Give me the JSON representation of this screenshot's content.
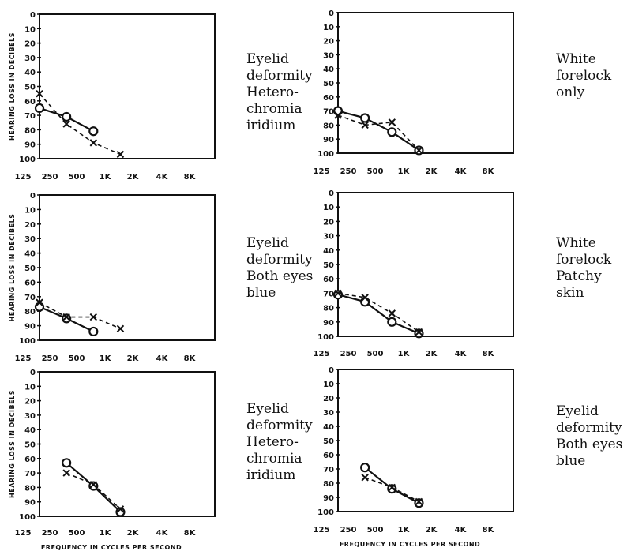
{
  "chart_data": [
    {
      "type": "line",
      "caption": [
        "Eyelid",
        "deformity",
        "Hetero-",
        "chromia",
        "iridium"
      ],
      "ylabel": "HEARING LOSS IN DECIBELS",
      "xlabel": "",
      "x_ticks": [
        "125",
        "250",
        "500",
        "1K",
        "2K",
        "4K",
        "8K"
      ],
      "y_ticks": [
        "0",
        "10",
        "20",
        "30",
        "40",
        "50",
        "60",
        "70",
        "80",
        "90",
        "100"
      ],
      "ylim": [
        0,
        100
      ],
      "series": [
        {
          "marker": "circle",
          "line": "solid",
          "x": [
            "125",
            "250",
            "500"
          ],
          "values": [
            65,
            71,
            81
          ]
        },
        {
          "marker": "cross",
          "line": "dashed",
          "x": [
            "125",
            "250",
            "500",
            "1K"
          ],
          "values": [
            55,
            76,
            89,
            97
          ]
        }
      ]
    },
    {
      "type": "line",
      "caption": [
        "White",
        "forelock",
        "only"
      ],
      "ylabel": "",
      "xlabel": "",
      "x_ticks": [
        "125",
        "250",
        "500",
        "1K",
        "2K",
        "4K",
        "8K"
      ],
      "y_ticks": [
        "0",
        "10",
        "20",
        "30",
        "40",
        "50",
        "60",
        "70",
        "80",
        "90",
        "100"
      ],
      "ylim": [
        0,
        100
      ],
      "series": [
        {
          "marker": "circle",
          "line": "solid",
          "x": [
            "125",
            "250",
            "500",
            "1K"
          ],
          "values": [
            70,
            75,
            85,
            98
          ]
        },
        {
          "marker": "cross",
          "line": "dashed",
          "x": [
            "125",
            "250",
            "500",
            "1K"
          ],
          "values": [
            73,
            80,
            78,
            98
          ]
        }
      ]
    },
    {
      "type": "line",
      "caption": [
        "Eyelid",
        "deformity",
        "Both eyes",
        "blue"
      ],
      "ylabel": "HEARING LOSS IN DECIBELS",
      "xlabel": "",
      "x_ticks": [
        "125",
        "250",
        "500",
        "1K",
        "2K",
        "4K",
        "8K"
      ],
      "y_ticks": [
        "0",
        "10",
        "20",
        "30",
        "40",
        "50",
        "60",
        "70",
        "80",
        "90",
        "100"
      ],
      "ylim": [
        0,
        100
      ],
      "series": [
        {
          "marker": "circle",
          "line": "solid",
          "x": [
            "125",
            "250",
            "500"
          ],
          "values": [
            77,
            85,
            94
          ]
        },
        {
          "marker": "cross",
          "line": "dashed",
          "x": [
            "125",
            "250",
            "500",
            "1K"
          ],
          "values": [
            74,
            84,
            84,
            92
          ]
        }
      ]
    },
    {
      "type": "line",
      "caption": [
        "White",
        "forelock",
        "Patchy",
        "skin"
      ],
      "ylabel": "",
      "xlabel": "",
      "x_ticks": [
        "125",
        "250",
        "500",
        "1K",
        "2K",
        "4K",
        "8K"
      ],
      "y_ticks": [
        "0",
        "10",
        "20",
        "30",
        "40",
        "50",
        "60",
        "70",
        "80",
        "90",
        "100"
      ],
      "ylim": [
        0,
        100
      ],
      "series": [
        {
          "marker": "circle",
          "line": "solid",
          "x": [
            "125",
            "250",
            "500",
            "1K"
          ],
          "values": [
            71,
            76,
            90,
            98
          ]
        },
        {
          "marker": "cross",
          "line": "dashed",
          "x": [
            "125",
            "250",
            "500",
            "1K"
          ],
          "values": [
            70,
            73,
            84,
            97
          ]
        }
      ]
    },
    {
      "type": "line",
      "caption": [
        "Eyelid",
        "deformity",
        "Hetero-",
        "chromia",
        "iridium"
      ],
      "ylabel": "HEARING LOSS IN DECIBELS",
      "xlabel": "FREQUENCY IN CYCLES PER SECOND",
      "x_ticks": [
        "125",
        "250",
        "500",
        "1K",
        "2K",
        "4K",
        "8K"
      ],
      "y_ticks": [
        "0",
        "10",
        "20",
        "30",
        "40",
        "50",
        "60",
        "70",
        "80",
        "90",
        "100"
      ],
      "ylim": [
        0,
        100
      ],
      "series": [
        {
          "marker": "circle",
          "line": "solid",
          "x": [
            "250",
            "500",
            "1K"
          ],
          "values": [
            63,
            79,
            97
          ]
        },
        {
          "marker": "cross",
          "line": "dashed",
          "x": [
            "250",
            "500",
            "1K"
          ],
          "values": [
            70,
            78,
            95
          ]
        }
      ]
    },
    {
      "type": "line",
      "caption": [
        "Eyelid",
        "deformity",
        "Both eyes",
        "blue"
      ],
      "ylabel": "",
      "xlabel": "FREQUENCY IN CYCLES PER SECOND",
      "x_ticks": [
        "125",
        "250",
        "500",
        "1K",
        "2K",
        "4K",
        "8K"
      ],
      "y_ticks": [
        "0",
        "10",
        "20",
        "30",
        "40",
        "50",
        "60",
        "70",
        "80",
        "90",
        "100"
      ],
      "ylim": [
        0,
        100
      ],
      "series": [
        {
          "marker": "circle",
          "line": "solid",
          "x": [
            "250",
            "500",
            "1K"
          ],
          "values": [
            69,
            84,
            94
          ]
        },
        {
          "marker": "cross",
          "line": "dashed",
          "x": [
            "250",
            "500",
            "1K"
          ],
          "values": [
            76,
            83,
            93
          ]
        }
      ]
    }
  ]
}
